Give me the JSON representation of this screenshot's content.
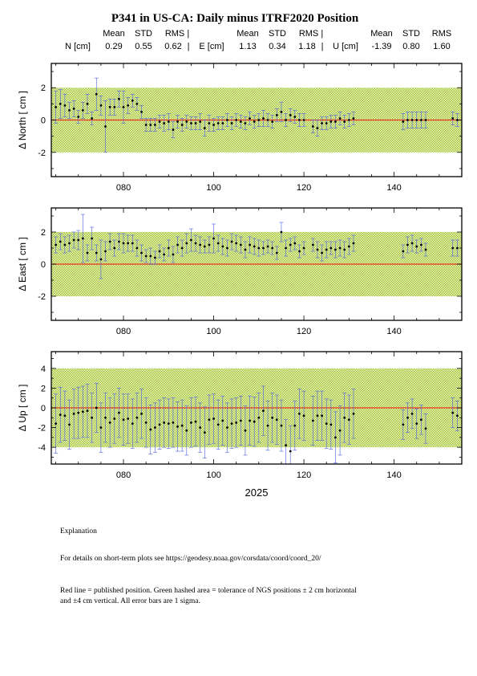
{
  "title": "P341 in US-CA: Daily minus ITRF2020 Position",
  "stats": {
    "headers": [
      "Mean",
      "STD",
      "RMS |",
      "Mean",
      "STD",
      "RMS |",
      "Mean",
      "STD",
      "RMS"
    ],
    "rows": [
      {
        "label": "N [cm]",
        "mean": "0.29",
        "std": "0.55",
        "rms": "0.62",
        "sep": "|"
      },
      {
        "label": "E [cm]",
        "mean": "1.13",
        "std": "0.34",
        "rms": "1.18",
        "sep": "|"
      },
      {
        "label": "U [cm]",
        "mean": "-1.39",
        "std": "0.80",
        "rms": "1.60",
        "sep": ""
      }
    ]
  },
  "year_label": "2025",
  "footer": {
    "explanation": "Explanation",
    "details": "For details on short-term plots see https://geodesy.noaa.gov/corsdata/coord/coord_20/",
    "legend_line1": "Red line = published position.  Green hashed area = tolerance of NGS positions ± 2 cm horizontal",
    "legend_line2": "and ±4 cm vertical.  All error bars are 1 sigma."
  },
  "colors": {
    "tolerance_fill": "#b5d14a",
    "reference_line": "#e8341c",
    "error_bar": "#4b5ee0",
    "point": "#000000"
  },
  "chart_data": [
    {
      "type": "scatter",
      "ylabel": "Δ North  [ cm ]",
      "xlim": [
        64,
        155
      ],
      "ylim": [
        -3.5,
        3.5
      ],
      "xticks": [
        80,
        100,
        120,
        140
      ],
      "xticklabels": [
        "080",
        "100",
        "120",
        "140"
      ],
      "yticks": [
        -2,
        0,
        2
      ],
      "tolerance": [
        -2,
        2
      ],
      "reference": 0,
      "grid": false,
      "x": [
        65,
        66,
        67,
        68,
        69,
        70,
        71,
        72,
        73,
        74,
        75,
        76,
        77,
        78,
        79,
        80,
        81,
        82,
        83,
        84,
        85,
        86,
        87,
        88,
        89,
        90,
        91,
        92,
        93,
        94,
        95,
        96,
        97,
        98,
        99,
        100,
        101,
        102,
        103,
        104,
        105,
        106,
        107,
        108,
        109,
        110,
        111,
        112,
        113,
        114,
        115,
        116,
        117,
        118,
        119,
        120,
        122,
        123,
        124,
        125,
        126,
        127,
        128,
        129,
        130,
        131,
        142,
        143,
        144,
        145,
        146,
        147,
        153,
        154
      ],
      "values": [
        0.8,
        1.0,
        0.9,
        0.6,
        0.7,
        0.2,
        0.6,
        1.0,
        0.1,
        1.6,
        0.9,
        -0.4,
        0.8,
        0.8,
        1.3,
        0.8,
        0.9,
        1.2,
        1.0,
        0.5,
        -0.3,
        -0.3,
        -0.3,
        -0.1,
        -0.2,
        -0.1,
        -0.6,
        -0.1,
        -0.3,
        -0.1,
        -0.2,
        -0.2,
        -0.1,
        -0.5,
        -0.2,
        -0.3,
        -0.2,
        -0.2,
        0.0,
        -0.2,
        0.0,
        -0.1,
        -0.2,
        0.1,
        -0.1,
        0.0,
        0.1,
        0.0,
        -0.1,
        0.3,
        0.5,
        0.0,
        0.3,
        0.2,
        0.0,
        0.0,
        -0.4,
        -0.5,
        -0.2,
        -0.2,
        -0.1,
        -0.1,
        0.1,
        -0.1,
        0.0,
        0.1,
        -0.1,
        0.0,
        0.0,
        0.0,
        0.0,
        0.0,
        0.1,
        0.0
      ],
      "errors": [
        1.0,
        0.9,
        0.7,
        0.5,
        0.5,
        0.4,
        0.5,
        0.6,
        0.4,
        1.0,
        0.6,
        1.6,
        0.5,
        0.5,
        0.5,
        1.0,
        0.5,
        0.4,
        0.4,
        0.4,
        0.4,
        0.4,
        0.4,
        0.4,
        0.5,
        0.5,
        0.5,
        0.4,
        0.4,
        0.4,
        0.4,
        0.4,
        0.5,
        0.5,
        0.5,
        0.4,
        0.4,
        0.4,
        0.4,
        0.4,
        0.4,
        0.4,
        0.4,
        0.4,
        0.4,
        0.4,
        0.5,
        0.4,
        0.4,
        0.4,
        0.6,
        0.4,
        0.4,
        0.4,
        0.4,
        0.4,
        0.4,
        0.5,
        0.4,
        0.4,
        0.4,
        0.4,
        0.4,
        0.4,
        0.4,
        0.4,
        0.5,
        0.5,
        0.5,
        0.5,
        0.5,
        0.5,
        0.4,
        0.4
      ]
    },
    {
      "type": "scatter",
      "ylabel": "Δ East  [ cm ]",
      "xlim": [
        64,
        155
      ],
      "ylim": [
        -3.5,
        3.5
      ],
      "xticks": [
        80,
        100,
        120,
        140
      ],
      "xticklabels": [
        "080",
        "100",
        "120",
        "140"
      ],
      "yticks": [
        -2,
        0,
        2
      ],
      "tolerance": [
        -2,
        2
      ],
      "reference": 0,
      "grid": false,
      "x": [
        65,
        66,
        67,
        68,
        69,
        70,
        71,
        72,
        73,
        74,
        75,
        76,
        77,
        78,
        79,
        80,
        81,
        82,
        83,
        84,
        85,
        86,
        87,
        88,
        89,
        90,
        91,
        92,
        93,
        94,
        95,
        96,
        97,
        98,
        99,
        100,
        101,
        102,
        103,
        104,
        105,
        106,
        107,
        108,
        109,
        110,
        111,
        112,
        113,
        114,
        115,
        116,
        117,
        118,
        119,
        120,
        122,
        123,
        124,
        125,
        126,
        127,
        128,
        129,
        130,
        131,
        142,
        143,
        144,
        145,
        146,
        147,
        153,
        154
      ],
      "values": [
        1.2,
        1.4,
        1.2,
        1.3,
        1.5,
        1.5,
        1.6,
        0.7,
        1.6,
        0.7,
        0.3,
        0.8,
        1.4,
        1.0,
        1.4,
        1.3,
        1.3,
        1.3,
        1.0,
        0.7,
        0.5,
        0.5,
        0.4,
        0.8,
        0.6,
        1.0,
        0.6,
        1.2,
        1.0,
        1.3,
        1.5,
        1.3,
        1.2,
        1.1,
        1.2,
        1.6,
        1.3,
        1.1,
        1.0,
        1.4,
        1.3,
        1.2,
        0.9,
        1.2,
        1.1,
        1.0,
        1.0,
        1.1,
        1.0,
        0.7,
        2.0,
        1.0,
        1.2,
        1.3,
        0.8,
        1.0,
        1.2,
        0.9,
        0.7,
        0.9,
        1.0,
        0.9,
        1.0,
        0.9,
        1.1,
        1.3,
        0.8,
        1.2,
        1.3,
        1.1,
        1.2,
        0.9,
        1.0,
        1.0
      ],
      "errors": [
        0.5,
        0.5,
        0.5,
        0.5,
        0.5,
        0.6,
        1.5,
        0.5,
        0.7,
        0.5,
        1.2,
        0.6,
        0.5,
        0.5,
        0.5,
        0.6,
        0.5,
        0.5,
        0.5,
        0.5,
        0.4,
        0.5,
        0.4,
        0.4,
        0.4,
        0.5,
        0.5,
        0.5,
        0.5,
        0.6,
        0.7,
        0.5,
        0.5,
        0.4,
        0.5,
        0.9,
        0.5,
        0.5,
        0.5,
        0.5,
        0.5,
        0.5,
        0.5,
        0.5,
        0.5,
        0.5,
        0.4,
        0.4,
        0.4,
        0.4,
        0.6,
        0.5,
        0.4,
        0.4,
        0.4,
        0.4,
        0.4,
        0.5,
        0.5,
        0.5,
        0.4,
        0.5,
        0.5,
        0.5,
        0.5,
        0.5,
        0.4,
        0.5,
        0.5,
        0.4,
        0.4,
        0.4,
        0.5,
        0.5
      ]
    },
    {
      "type": "scatter",
      "ylabel": "Δ Up  [ cm ]",
      "xlabel": "2025",
      "xlim": [
        64,
        155
      ],
      "ylim": [
        -5.7,
        5.7
      ],
      "xticks": [
        80,
        100,
        120,
        140
      ],
      "xticklabels": [
        "080",
        "100",
        "120",
        "140"
      ],
      "yticks": [
        -4,
        -2,
        0,
        2,
        4
      ],
      "tolerance": [
        -4,
        4
      ],
      "reference": 0,
      "grid": false,
      "x": [
        65,
        66,
        67,
        68,
        69,
        70,
        71,
        72,
        73,
        74,
        75,
        76,
        77,
        78,
        79,
        80,
        81,
        82,
        83,
        84,
        85,
        86,
        87,
        88,
        89,
        90,
        91,
        92,
        93,
        94,
        95,
        96,
        97,
        98,
        99,
        100,
        101,
        102,
        103,
        104,
        105,
        106,
        107,
        108,
        109,
        110,
        111,
        112,
        113,
        114,
        115,
        116,
        117,
        118,
        119,
        120,
        122,
        123,
        124,
        125,
        126,
        127,
        128,
        129,
        130,
        131,
        142,
        143,
        144,
        145,
        146,
        147,
        153,
        154
      ],
      "values": [
        -1.6,
        -0.7,
        -0.8,
        -1.7,
        -0.6,
        -0.5,
        -0.4,
        -0.3,
        -1.0,
        0.0,
        -2.0,
        -1.0,
        -1.5,
        -1.1,
        -0.5,
        -1.2,
        -1.1,
        -1.6,
        -1.0,
        -0.6,
        -1.5,
        -2.2,
        -2.0,
        -1.7,
        -1.5,
        -1.6,
        -1.5,
        -1.9,
        -1.8,
        -2.3,
        -1.5,
        -1.4,
        -2.0,
        -2.5,
        -1.2,
        -1.1,
        -1.7,
        -1.3,
        -2.0,
        -1.6,
        -1.5,
        -1.3,
        -2.3,
        -1.3,
        -1.4,
        -1.0,
        -0.3,
        -1.8,
        -1.0,
        -1.2,
        -1.8,
        -3.8,
        -4.4,
        -1.8,
        -0.6,
        -0.8,
        -1.3,
        -0.8,
        -0.8,
        -1.6,
        -1.7,
        -3.0,
        -2.3,
        -1.0,
        -1.2,
        -0.6,
        -1.7,
        -1.0,
        -0.6,
        -1.6,
        -1.2,
        -2.1,
        -0.5,
        -0.8
      ],
      "errors": [
        3.0,
        2.8,
        2.5,
        2.5,
        2.5,
        2.6,
        2.6,
        2.7,
        2.5,
        2.5,
        2.5,
        2.5,
        2.5,
        2.5,
        2.5,
        2.6,
        2.5,
        2.5,
        2.5,
        2.5,
        2.5,
        2.5,
        2.5,
        2.5,
        2.5,
        2.5,
        2.5,
        2.5,
        2.6,
        2.5,
        2.5,
        2.5,
        2.5,
        2.6,
        2.5,
        2.5,
        2.5,
        2.5,
        2.5,
        2.5,
        2.5,
        2.5,
        2.5,
        2.5,
        2.5,
        2.5,
        2.5,
        2.5,
        2.5,
        2.5,
        2.6,
        2.6,
        2.6,
        2.5,
        2.5,
        2.5,
        2.5,
        2.5,
        2.5,
        2.5,
        2.5,
        2.6,
        2.5,
        2.5,
        2.5,
        2.5,
        1.5,
        1.5,
        1.5,
        1.5,
        1.5,
        1.5,
        1.5,
        1.5
      ]
    }
  ]
}
